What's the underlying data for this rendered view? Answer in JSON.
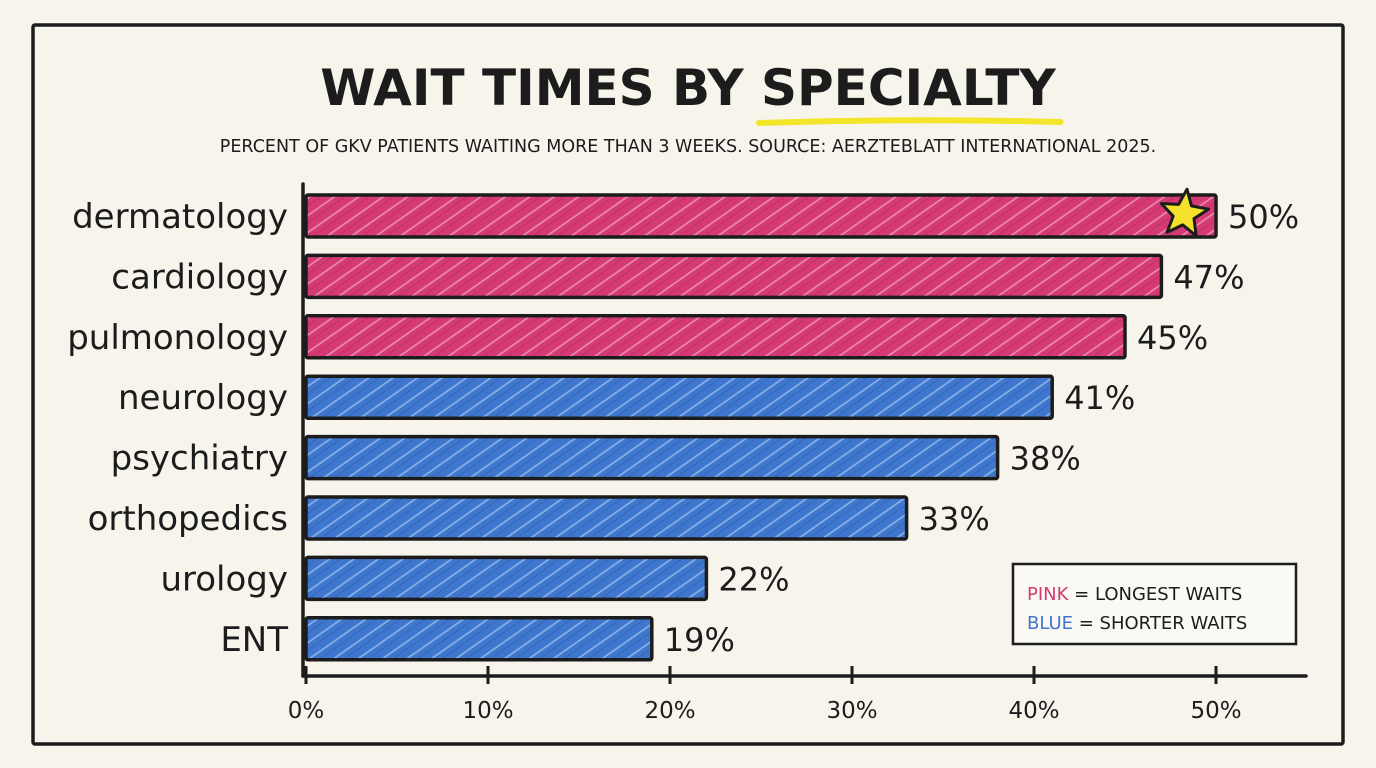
{
  "colors": {
    "background": "#f7f4ec",
    "ink": "#1c1c1c",
    "pink": "#d63a74",
    "blue": "#3f77cf",
    "highlight": "#f3e62a",
    "star": "#f5e02c"
  },
  "chart_data": {
    "type": "bar",
    "orientation": "horizontal",
    "title_prefix": "WAIT TIMES BY ",
    "title_highlight": "SPECIALTY",
    "subtitle": "PERCENT OF GKV PATIENTS WAITING MORE THAN 3 WEEKS. SOURCE: AERZTEBLATT INTERNATIONAL 2025.",
    "categories": [
      "dermatology",
      "cardiology",
      "pulmonology",
      "neurology",
      "psychiatry",
      "orthopedics",
      "urology",
      "ENT"
    ],
    "values": [
      50,
      47,
      45,
      41,
      38,
      33,
      22,
      19
    ],
    "value_labels": [
      "50%",
      "47%",
      "45%",
      "41%",
      "38%",
      "33%",
      "22%",
      "19%"
    ],
    "groups": [
      "pink",
      "pink",
      "pink",
      "blue",
      "blue",
      "blue",
      "blue",
      "blue"
    ],
    "star_marked": "dermatology",
    "xlim": [
      0,
      50
    ],
    "xticks": [
      0,
      10,
      20,
      30,
      40,
      50
    ],
    "xtick_labels": [
      "0%",
      "10%",
      "20%",
      "30%",
      "40%",
      "50%"
    ],
    "grid": false,
    "legend": {
      "position": "bottom-right",
      "entries": [
        {
          "key": "PINK",
          "text": " = LONGEST WAITS",
          "color": "pink"
        },
        {
          "key": "BLUE",
          "text": " = SHORTER WAITS",
          "color": "blue"
        }
      ]
    }
  }
}
